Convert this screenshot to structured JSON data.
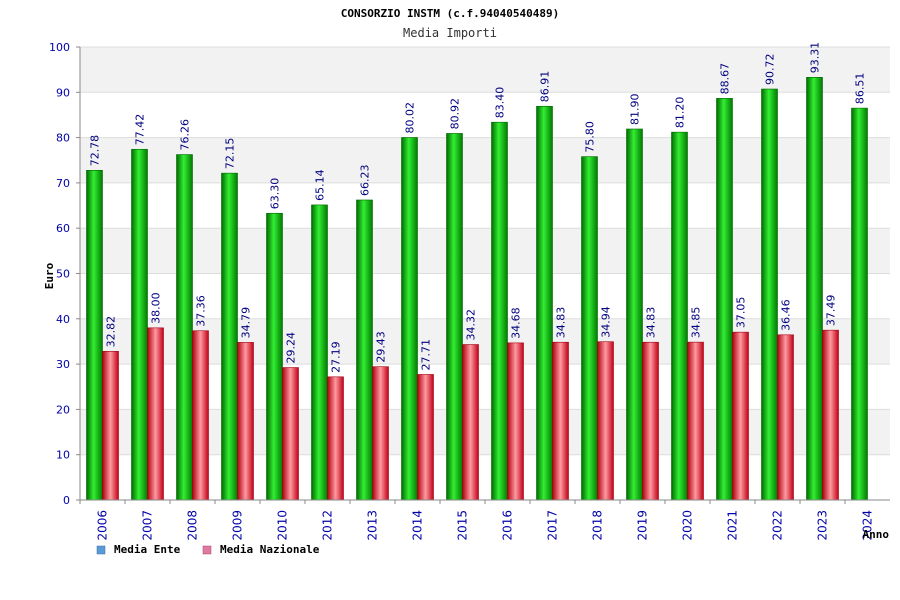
{
  "chart_data": {
    "type": "bar",
    "title": "CONSORZIO INSTM (c.f.94040540489)",
    "subtitle": "Media Importi",
    "xlabel": "Anno",
    "ylabel": "Euro",
    "ylim": [
      0,
      100
    ],
    "yticks": [
      0,
      10,
      20,
      30,
      40,
      50,
      60,
      70,
      80,
      90,
      100
    ],
    "categories": [
      "2006",
      "2007",
      "2008",
      "2009",
      "2010",
      "2012",
      "2013",
      "2014",
      "2015",
      "2016",
      "2017",
      "2018",
      "2019",
      "2020",
      "2021",
      "2022",
      "2023",
      "2024"
    ],
    "series": [
      {
        "name": "Media Ente",
        "legend_color": "#5b9bd5",
        "bar_color": "#00b400",
        "values": [
          72.78,
          77.42,
          76.26,
          72.15,
          63.3,
          65.14,
          66.23,
          80.02,
          80.92,
          83.4,
          86.91,
          75.8,
          81.9,
          81.2,
          88.67,
          90.72,
          93.31,
          86.51
        ],
        "labels": [
          "72.78",
          "77.42",
          "76.26",
          "72.15",
          "63.30",
          "65.14",
          "66.23",
          "80.02",
          "80.92",
          "83.40",
          "86.91",
          "75.80",
          "81.90",
          "81.20",
          "88.67",
          "90.72",
          "93.31",
          "86.51"
        ]
      },
      {
        "name": "Media Nazionale",
        "legend_color": "#e07aa0",
        "bar_color": "#e8202a",
        "values": [
          32.82,
          38.0,
          37.36,
          34.79,
          29.24,
          27.19,
          29.43,
          27.71,
          34.32,
          34.68,
          34.83,
          34.94,
          34.83,
          34.85,
          37.05,
          36.46,
          37.49,
          null
        ],
        "labels": [
          "32.82",
          "38.00",
          "37.36",
          "34.79",
          "29.24",
          "27.19",
          "29.43",
          "27.71",
          "34.32",
          "34.68",
          "34.83",
          "34.94",
          "34.83",
          "34.85",
          "37.05",
          "36.46",
          "37.49",
          null
        ]
      }
    ],
    "legend_position": "bottom-left",
    "grid": true
  }
}
